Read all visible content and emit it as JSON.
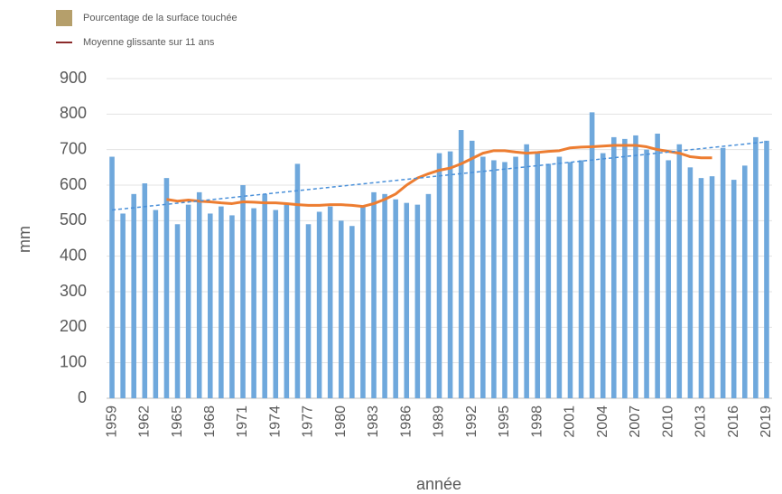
{
  "chart_data": {
    "type": "bar",
    "ylabel": "mm",
    "xlabel": "année",
    "legend": [
      {
        "name": "Pourcentage de la surface touchée",
        "color": "#b59f6b",
        "shape": "square"
      },
      {
        "name": "Moyenne glissante sur 11 ans",
        "color": "#8b2a2a",
        "shape": "line"
      }
    ],
    "categories": [
      "1959",
      null,
      null,
      "1962",
      null,
      null,
      "1965",
      null,
      null,
      "1968",
      null,
      null,
      "1971",
      null,
      null,
      "1974",
      null,
      null,
      "1977",
      null,
      null,
      "1980",
      null,
      null,
      "1983",
      null,
      null,
      "1986",
      null,
      null,
      "1989",
      null,
      null,
      "1992",
      null,
      null,
      "1995",
      null,
      null,
      "1998",
      null,
      null,
      "2001",
      null,
      null,
      "2004",
      null,
      null,
      "2007",
      null,
      null,
      "2010",
      null,
      null,
      "2013",
      null,
      null,
      "2016",
      null,
      null,
      "2019"
    ],
    "series": [
      {
        "type": "bar",
        "color": "#6fa8dc",
        "values": [
          680,
          520,
          575,
          605,
          530,
          620,
          490,
          545,
          580,
          520,
          540,
          515,
          600,
          535,
          575,
          530,
          550,
          660,
          490,
          525,
          540,
          500,
          485,
          540,
          580,
          575,
          560,
          550,
          545,
          575,
          690,
          695,
          755,
          725,
          680,
          670,
          665,
          680,
          715,
          690,
          660,
          680,
          665,
          670,
          805,
          690,
          735,
          730,
          740,
          700,
          745,
          670,
          715,
          650,
          620,
          625,
          705,
          615,
          655,
          735,
          725
        ]
      },
      {
        "type": "line",
        "color": "#ed7d31",
        "values": [
          null,
          null,
          null,
          null,
          null,
          560,
          555,
          558,
          555,
          553,
          550,
          548,
          553,
          552,
          550,
          550,
          548,
          545,
          543,
          543,
          545,
          545,
          543,
          540,
          548,
          560,
          575,
          600,
          620,
          632,
          642,
          648,
          660,
          675,
          690,
          697,
          697,
          693,
          690,
          692,
          695,
          697,
          705,
          707,
          708,
          710,
          712,
          712,
          712,
          708,
          700,
          695,
          690,
          680,
          677,
          677,
          null,
          null,
          null,
          null,
          null
        ]
      }
    ],
    "trend": {
      "color": "#4a90d9",
      "values": [
        530,
        722
      ]
    },
    "ylim": [
      0,
      900
    ],
    "yticks": [
      0,
      100,
      200,
      300,
      400,
      500,
      600,
      700,
      800,
      900
    ],
    "grid": true
  }
}
